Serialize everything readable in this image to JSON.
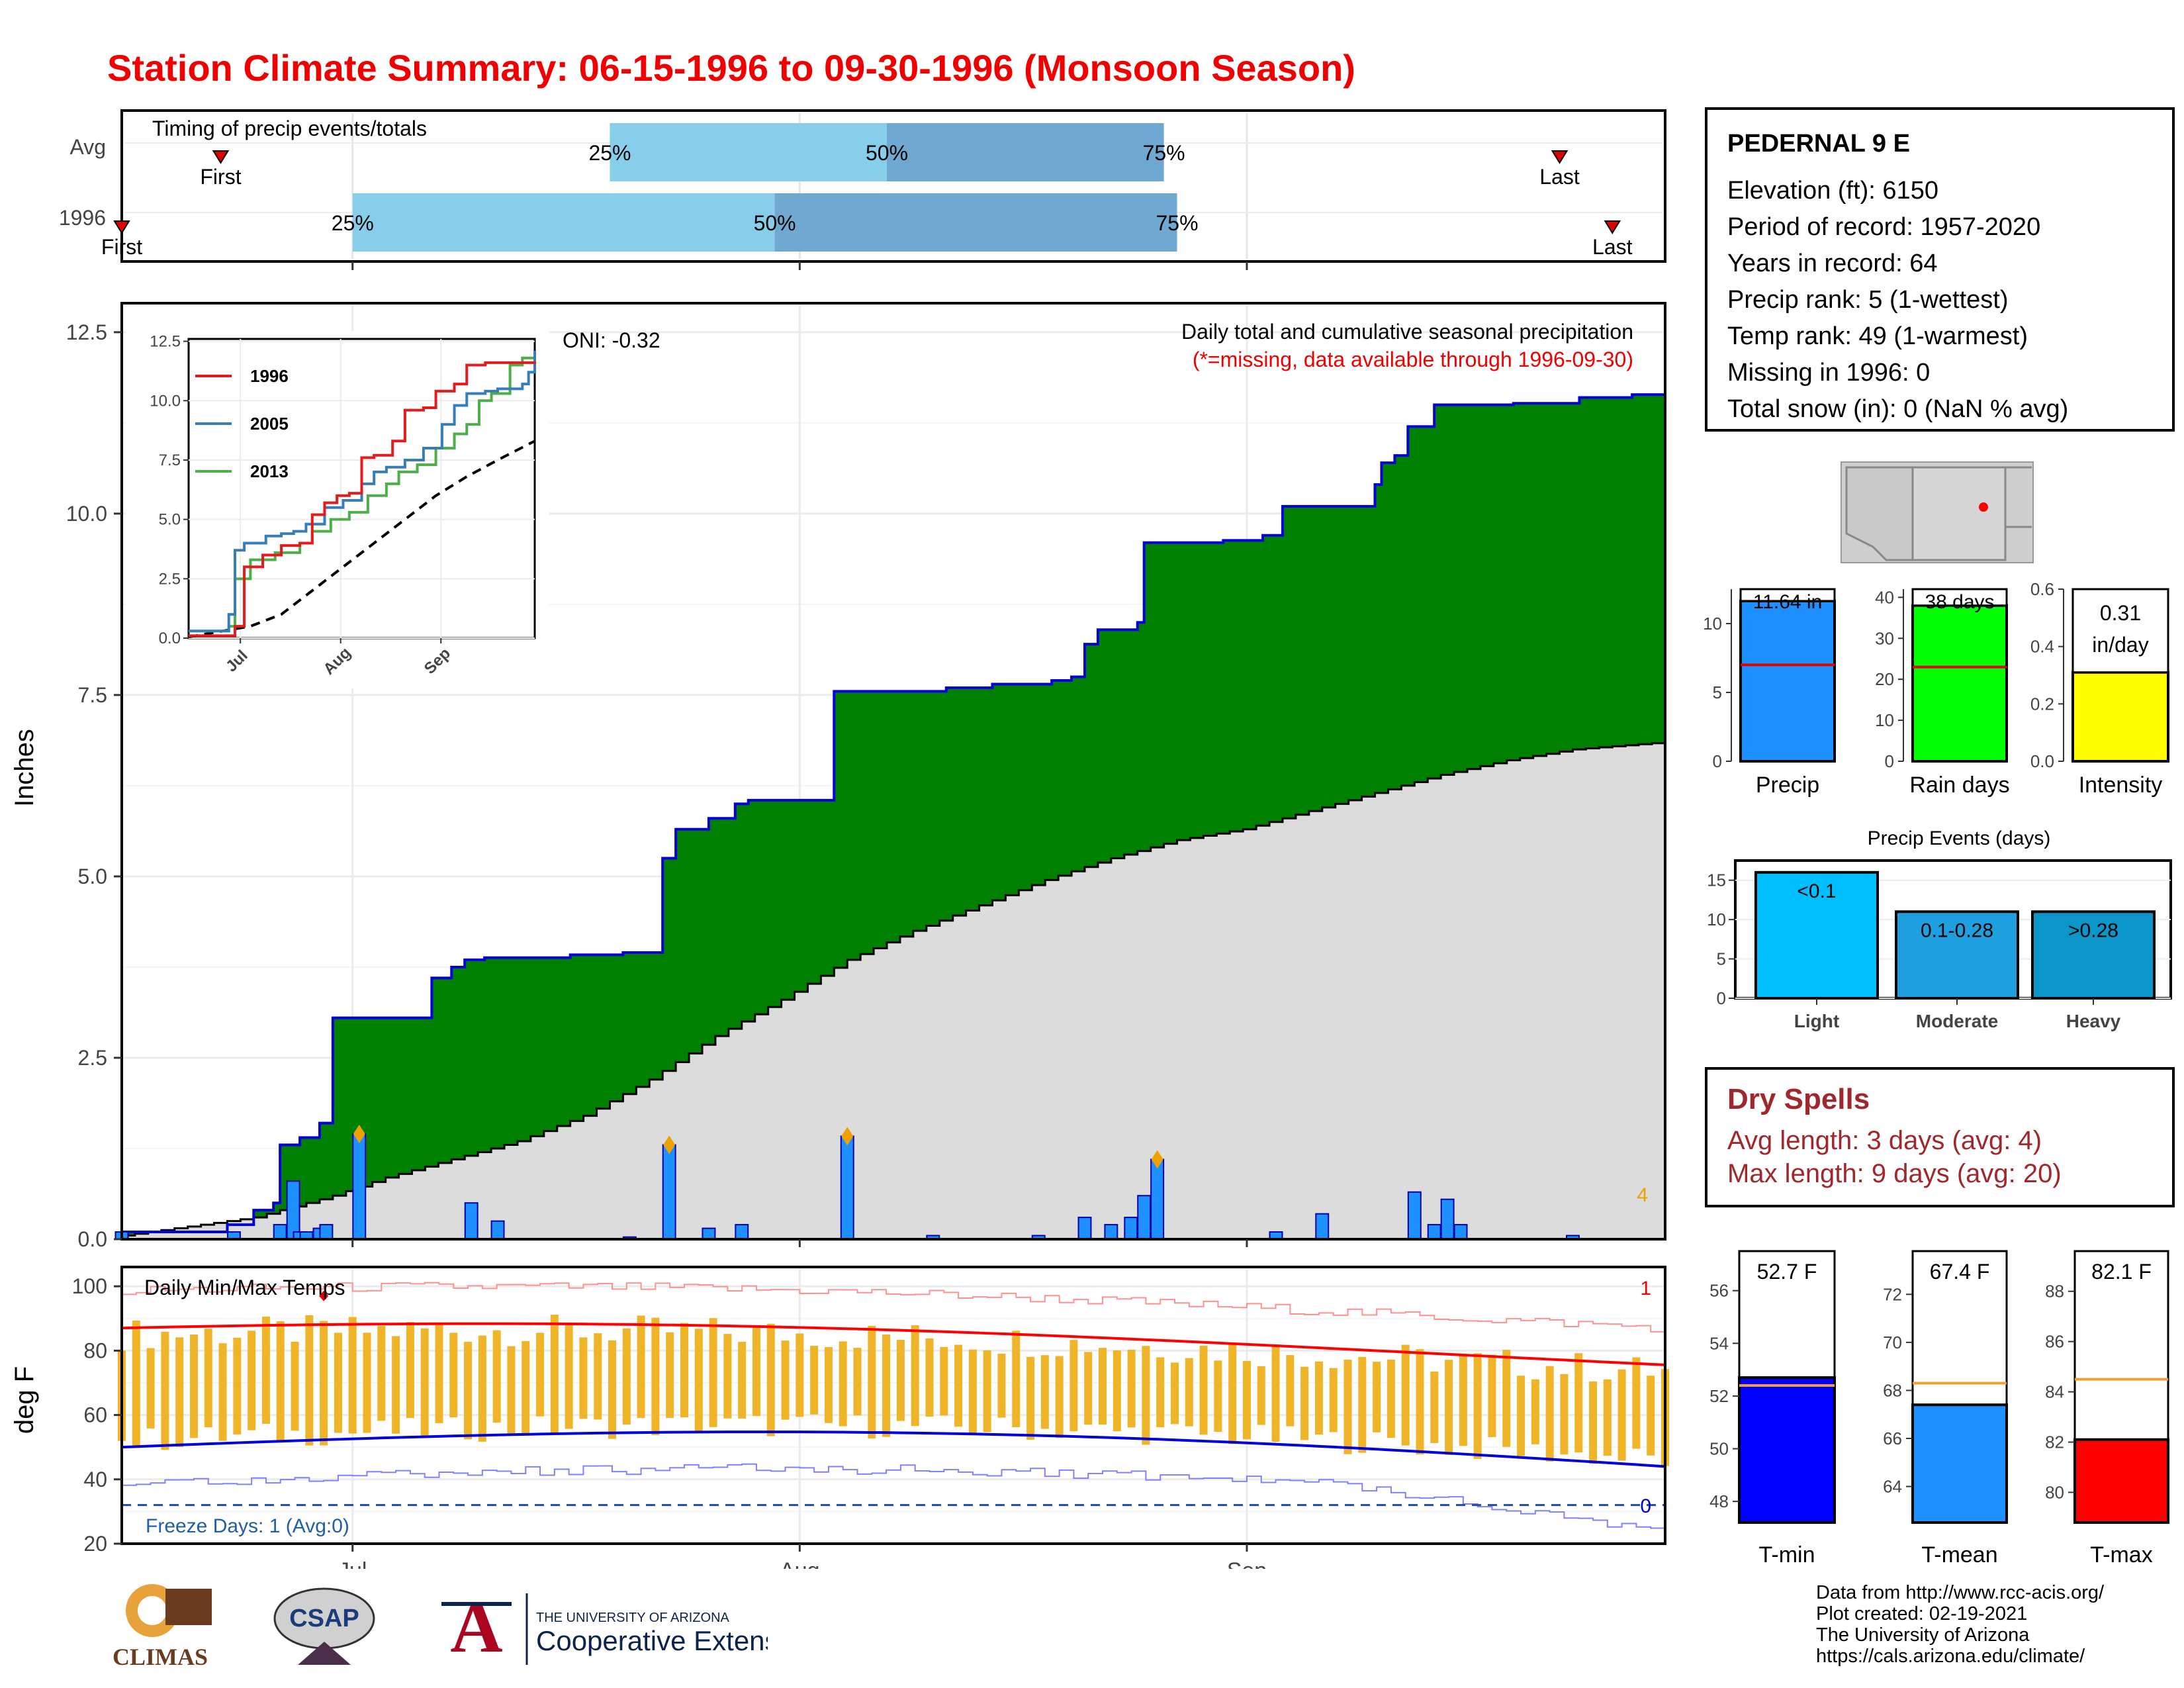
{
  "title": "Station Climate Summary: 06-15-1996 to 09-30-1996 (Monsoon Season)",
  "colors": {
    "title": "#f00000",
    "precip_green": "#008000",
    "normal_gray": "#dcdcdc",
    "daily_bar": "#1e90ff",
    "tmax_line": "#ff0000",
    "tmin_line": "#0000dd",
    "temp_bar": "#f0b428"
  },
  "timing": {
    "title": "Timing of precip events/totals",
    "rows": [
      {
        "label": "Avg",
        "first_label": "First",
        "last_label": "Last",
        "q25": "25%",
        "q50": "50%",
        "q75": "75%",
        "first_day": 15,
        "q25_day": 74,
        "q50_day": 116,
        "q75_day": 158,
        "last_day": 218
      },
      {
        "label": "1996",
        "first_label": "First",
        "last_label": "Last",
        "q25": "25%",
        "q50": "50%",
        "q75": "75%",
        "first_day": 0,
        "q25_day": 35,
        "q50_day": 99,
        "q75_day": 160,
        "last_day": 226
      }
    ]
  },
  "station": {
    "name": "PEDERNAL 9 E",
    "lines": [
      "Elevation (ft): 6150",
      "Period of record: 1957-2020",
      "Years in record: 64",
      "Precip rank: 5 (1-wettest)",
      "Temp rank: 49 (1-warmest)",
      "Missing in 1996: 0",
      "Total snow (in): 0 (NaN % avg)"
    ]
  },
  "main_chart": {
    "ylabel": "Inches",
    "yticks": [
      "0.0",
      "2.5",
      "5.0",
      "7.5",
      "10.0",
      "12.5"
    ],
    "xticks": [
      "Jul",
      "Aug",
      "Sep"
    ],
    "subtitle1": "Daily total and cumulative seasonal precipitation",
    "subtitle2": "(*=missing, data available through 1996-09-30)",
    "oni": "ONI: -0.32",
    "corner_count": "4"
  },
  "chart_data": {
    "type": "area",
    "ylim": [
      0,
      12.5
    ],
    "x_start": "1996-06-15",
    "x_end": "1996-09-30",
    "cumulative_1996": [
      [
        0,
        0.1
      ],
      [
        16,
        0.2
      ],
      [
        20,
        0.4
      ],
      [
        23,
        0.5
      ],
      [
        24,
        1.3
      ],
      [
        27,
        1.4
      ],
      [
        30,
        1.6
      ],
      [
        32,
        3.05
      ],
      [
        47,
        3.6
      ],
      [
        50,
        3.75
      ],
      [
        52,
        3.85
      ],
      [
        55,
        3.88
      ],
      [
        68,
        3.92
      ],
      [
        76,
        3.95
      ],
      [
        82,
        5.25
      ],
      [
        84,
        5.65
      ],
      [
        89,
        5.8
      ],
      [
        93,
        6.0
      ],
      [
        95,
        6.05
      ],
      [
        106,
        6.05
      ],
      [
        108,
        7.55
      ],
      [
        125,
        7.6
      ],
      [
        132,
        7.65
      ],
      [
        141,
        7.7
      ],
      [
        144,
        7.75
      ],
      [
        146,
        8.2
      ],
      [
        148,
        8.4
      ],
      [
        154,
        8.5
      ],
      [
        155,
        9.6
      ],
      [
        167,
        9.63
      ],
      [
        173,
        9.7
      ],
      [
        176,
        10.1
      ],
      [
        190,
        10.4
      ],
      [
        191,
        10.7
      ],
      [
        193,
        10.8
      ],
      [
        195,
        11.2
      ],
      [
        199,
        11.5
      ],
      [
        211,
        11.52
      ],
      [
        221,
        11.6
      ],
      [
        229,
        11.64
      ],
      [
        234,
        11.64
      ]
    ],
    "avg_cumulative": [
      [
        0,
        0.05
      ],
      [
        20,
        0.3
      ],
      [
        32,
        0.6
      ],
      [
        40,
        0.85
      ],
      [
        50,
        1.1
      ],
      [
        60,
        1.35
      ],
      [
        70,
        1.7
      ],
      [
        80,
        2.2
      ],
      [
        90,
        2.8
      ],
      [
        100,
        3.3
      ],
      [
        110,
        3.85
      ],
      [
        120,
        4.25
      ],
      [
        130,
        4.6
      ],
      [
        140,
        4.95
      ],
      [
        150,
        5.25
      ],
      [
        160,
        5.5
      ],
      [
        170,
        5.65
      ],
      [
        180,
        5.9
      ],
      [
        190,
        6.15
      ],
      [
        200,
        6.4
      ],
      [
        210,
        6.6
      ],
      [
        220,
        6.75
      ],
      [
        234,
        6.85
      ]
    ],
    "daily_precip": [
      [
        0,
        0.1
      ],
      [
        17,
        0.1
      ],
      [
        24,
        0.2
      ],
      [
        26,
        0.8
      ],
      [
        27,
        0.1
      ],
      [
        28,
        0.1
      ],
      [
        30,
        0.15
      ],
      [
        31,
        0.2
      ],
      [
        36,
        1.45
      ],
      [
        53,
        0.5
      ],
      [
        57,
        0.25
      ],
      [
        77,
        0.03
      ],
      [
        83,
        1.3
      ],
      [
        89,
        0.15
      ],
      [
        94,
        0.2
      ],
      [
        110,
        1.42
      ],
      [
        123,
        0.05
      ],
      [
        139,
        0.05
      ],
      [
        146,
        0.3
      ],
      [
        150,
        0.2
      ],
      [
        153,
        0.3
      ],
      [
        155,
        0.6
      ],
      [
        157,
        1.1
      ],
      [
        175,
        0.1
      ],
      [
        182,
        0.35
      ],
      [
        196,
        0.65
      ],
      [
        199,
        0.2
      ],
      [
        201,
        0.55
      ],
      [
        203,
        0.2
      ],
      [
        220,
        0.05
      ]
    ],
    "event_markers": [
      [
        36,
        1.45
      ],
      [
        83,
        1.3
      ],
      [
        110,
        1.42
      ],
      [
        157,
        1.1
      ]
    ]
  },
  "inset": {
    "yticks": [
      "0.0",
      "2.5",
      "5.0",
      "7.5",
      "10.0",
      "12.5"
    ],
    "xticks": [
      "Jul",
      "Aug",
      "Sep"
    ],
    "legend": [
      {
        "name": "1996",
        "color": "#e41a1c"
      },
      {
        "name": "2005",
        "color": "#377eb8"
      },
      {
        "name": "2013",
        "color": "#4daf4a"
      }
    ],
    "series_2005": [
      [
        0,
        0.3
      ],
      [
        10,
        0.3
      ],
      [
        13,
        1.0
      ],
      [
        15,
        3.7
      ],
      [
        18,
        4.0
      ],
      [
        25,
        4.3
      ],
      [
        30,
        4.4
      ],
      [
        34,
        4.5
      ],
      [
        38,
        4.8
      ],
      [
        44,
        5.5
      ],
      [
        50,
        5.8
      ],
      [
        56,
        6.5
      ],
      [
        60,
        7.0
      ],
      [
        64,
        7.2
      ],
      [
        70,
        7.5
      ],
      [
        76,
        8.0
      ],
      [
        82,
        9.0
      ],
      [
        86,
        9.8
      ],
      [
        90,
        10.3
      ],
      [
        96,
        10.4
      ],
      [
        100,
        10.5
      ],
      [
        108,
        10.7
      ],
      [
        110,
        11.2
      ],
      [
        112,
        12.1
      ]
    ],
    "series_2013": [
      [
        0,
        0.3
      ],
      [
        13,
        0.5
      ],
      [
        15,
        2.5
      ],
      [
        20,
        3.3
      ],
      [
        28,
        3.6
      ],
      [
        36,
        4.0
      ],
      [
        40,
        4.5
      ],
      [
        46,
        5.0
      ],
      [
        52,
        5.3
      ],
      [
        58,
        6.0
      ],
      [
        64,
        6.5
      ],
      [
        68,
        7.0
      ],
      [
        74,
        7.3
      ],
      [
        80,
        8.0
      ],
      [
        86,
        8.6
      ],
      [
        90,
        9.0
      ],
      [
        94,
        10.0
      ],
      [
        98,
        10.3
      ],
      [
        104,
        11.5
      ],
      [
        108,
        11.8
      ],
      [
        112,
        12.0
      ]
    ],
    "series_1996": [
      [
        0,
        0.1
      ],
      [
        15,
        0.5
      ],
      [
        18,
        3.0
      ],
      [
        24,
        3.5
      ],
      [
        30,
        3.9
      ],
      [
        36,
        4.0
      ],
      [
        40,
        5.2
      ],
      [
        44,
        5.7
      ],
      [
        48,
        6.0
      ],
      [
        52,
        6.1
      ],
      [
        56,
        7.6
      ],
      [
        60,
        7.7
      ],
      [
        66,
        8.3
      ],
      [
        70,
        9.6
      ],
      [
        76,
        9.7
      ],
      [
        80,
        10.4
      ],
      [
        86,
        10.7
      ],
      [
        90,
        11.5
      ],
      [
        96,
        11.6
      ],
      [
        112,
        11.64
      ]
    ],
    "avg_series": [
      [
        0,
        0.05
      ],
      [
        20,
        0.5
      ],
      [
        30,
        1.0
      ],
      [
        40,
        2.0
      ],
      [
        50,
        3.0
      ],
      [
        60,
        4.0
      ],
      [
        70,
        5.0
      ],
      [
        80,
        6.0
      ],
      [
        90,
        6.8
      ],
      [
        100,
        7.5
      ],
      [
        112,
        8.3
      ]
    ]
  },
  "bars_summary": [
    {
      "label": "Precip",
      "value_label": "11.64 in",
      "value": 11.64,
      "avg": 7.0,
      "ymax": 12.5,
      "yticks": [
        "0",
        "5",
        "10"
      ],
      "tick_vals": [
        0,
        5,
        10
      ],
      "color": "#1e90ff"
    },
    {
      "label": "Rain days",
      "value_label": "38 days",
      "value": 38,
      "avg": 23,
      "ymax": 42,
      "yticks": [
        "0",
        "10",
        "20",
        "30",
        "40"
      ],
      "tick_vals": [
        0,
        10,
        20,
        30,
        40
      ],
      "color": "#00ff00"
    },
    {
      "label": "Intensity",
      "value_label": "0.31 in/day",
      "value_line1": "0.31",
      "value_line2": "in/day",
      "value": 0.31,
      "avg": 0.31,
      "ymax": 0.6,
      "yticks": [
        "0.0",
        "0.2",
        "0.4",
        "0.6"
      ],
      "tick_vals": [
        0,
        0.2,
        0.4,
        0.6
      ],
      "color": "#ffff00"
    }
  ],
  "events": {
    "title": "Precip Events (days)",
    "yticks": [
      "0",
      "5",
      "10",
      "15"
    ],
    "categories": [
      {
        "label": "Light",
        "bin": "<0.1",
        "value": 16,
        "color": "#00bfff"
      },
      {
        "label": "Moderate",
        "bin": "0.1-0.28",
        "value": 11,
        "color": "#1ea0e0"
      },
      {
        "label": "Heavy",
        "bin": ">0.28",
        "value": 11,
        "color": "#0a96c8"
      }
    ]
  },
  "dry_spells": {
    "title": "Dry Spells",
    "avg_line": "Avg length: 3 days (avg: 4)",
    "max_line": "Max length: 9 days (avg: 20)"
  },
  "temp_chart": {
    "ylabel": "deg F",
    "yticks": [
      "20",
      "40",
      "60",
      "80",
      "100"
    ],
    "title": "Daily Min/Max Temps",
    "freeze": "Freeze Days: 1 (Avg:0)",
    "corner_count_top": "1",
    "corner_count_bottom": "0",
    "xticks": [
      "Jul",
      "Aug",
      "Sep"
    ]
  },
  "temp_summary": [
    {
      "label": "T-min",
      "value_label": "52.7 F",
      "value": 52.7,
      "avg": 52.4,
      "ymin": 47.2,
      "ymax": 57.5,
      "yticks": [
        "48",
        "50",
        "52",
        "54",
        "56"
      ],
      "tick_vals": [
        48,
        50,
        52,
        54,
        56
      ],
      "color": "#0000ff"
    },
    {
      "label": "T-mean",
      "value_label": "67.4 F",
      "value": 67.4,
      "avg": 68.3,
      "ymin": 62.5,
      "ymax": 73.8,
      "yticks": [
        "64",
        "66",
        "68",
        "70",
        "72"
      ],
      "tick_vals": [
        64,
        66,
        68,
        70,
        72
      ],
      "color": "#1e90ff"
    },
    {
      "label": "T-max",
      "value_label": "82.1 F",
      "value": 82.1,
      "avg": 84.5,
      "ymin": 78.8,
      "ymax": 89.6,
      "yticks": [
        "80",
        "82",
        "84",
        "86",
        "88"
      ],
      "tick_vals": [
        80,
        82,
        84,
        86,
        88
      ],
      "color": "#ff0000"
    }
  ],
  "logos": {
    "climas": "CLIMAS",
    "csap": "CSAP",
    "ua_line1": "THE UNIVERSITY OF ARIZONA",
    "ua_line2": "Cooperative Extension"
  },
  "credits": [
    "Data from http://www.rcc-acis.org/",
    "Plot created: 02-19-2021",
    "The University of Arizona",
    "https://cals.arizona.edu/climate/"
  ]
}
